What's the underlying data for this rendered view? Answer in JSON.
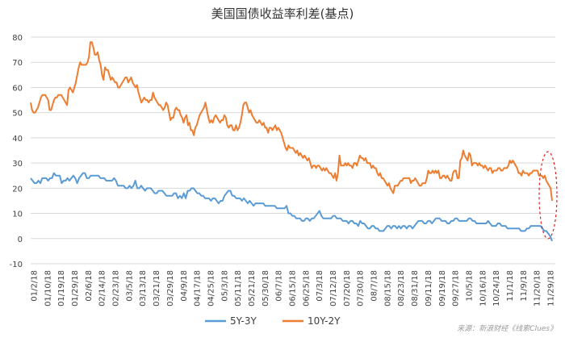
{
  "chart_data": {
    "type": "line",
    "title": "美国国债收益率利差(基点)",
    "ylim": [
      -10,
      80
    ],
    "yticks": [
      -10,
      0,
      10,
      20,
      30,
      40,
      50,
      60,
      70,
      80
    ],
    "grid": true,
    "legend_position": "bottom-center",
    "x_tick_labels": [
      "01/2/18",
      "01/10/18",
      "01/19/18",
      "01/29/18",
      "02/6/18",
      "02/14/18",
      "02/23/18",
      "03/5/18",
      "03/13/18",
      "03/21/18",
      "03/29/18",
      "04/9/18",
      "04/17/18",
      "04/25/18",
      "05/3/18",
      "05/11/18",
      "05/21/18",
      "05/30/18",
      "06/7/18",
      "06/15/18",
      "06/25/18",
      "07/3/18",
      "07/12/18",
      "07/20/18",
      "07/30/18",
      "08/7/18",
      "08/15/18",
      "08/23/18",
      "08/31/18",
      "09/11/18",
      "09/19/18",
      "09/27/18",
      "10/5/18",
      "10/16/18",
      "10/24/18",
      "11/1/18",
      "11/9/18",
      "11/20/18",
      "11/29/18"
    ],
    "series": [
      {
        "name": "5Y-3Y",
        "color": "#5b9bd5",
        "values": [
          24,
          23,
          22,
          22,
          23,
          22,
          24,
          24,
          24,
          23,
          24,
          24,
          26,
          25,
          25,
          25,
          22,
          23,
          23,
          24,
          23,
          24,
          25,
          24,
          22,
          24,
          25,
          26,
          26,
          24,
          24,
          25,
          25,
          25,
          25,
          25,
          24,
          24,
          24,
          23,
          23,
          23,
          23,
          24,
          23,
          21,
          21,
          21,
          21,
          20,
          20,
          21,
          20,
          21,
          23,
          20,
          20,
          21,
          20,
          19,
          20,
          20,
          20,
          19,
          18,
          18,
          19,
          19,
          19,
          18,
          17,
          17,
          17,
          17,
          18,
          18,
          16,
          17,
          16,
          18,
          16,
          19,
          19,
          20,
          20,
          19,
          18,
          18,
          17,
          17,
          16,
          16,
          16,
          15,
          16,
          16,
          15,
          14,
          15,
          15,
          17,
          18,
          19,
          19,
          17,
          17,
          16,
          16,
          16,
          15,
          16,
          15,
          14,
          15,
          14,
          13,
          14,
          14,
          14,
          14,
          14,
          13,
          13,
          13,
          13,
          13,
          13,
          12,
          12,
          12,
          12,
          12,
          13,
          10,
          10,
          9,
          9,
          8,
          8,
          8,
          7,
          7,
          8,
          8,
          7,
          8,
          8,
          9,
          10,
          11,
          9,
          8,
          8,
          8,
          8,
          8,
          9,
          9,
          8,
          8,
          8,
          7,
          7,
          7,
          6,
          7,
          7,
          6,
          6,
          5,
          7,
          6,
          6,
          5,
          4,
          4,
          5,
          5,
          4,
          4,
          3,
          3,
          3,
          4,
          5,
          5,
          4,
          5,
          5,
          4,
          5,
          4,
          5,
          5,
          4,
          5,
          5,
          4,
          5,
          6,
          7,
          7,
          7,
          6,
          6,
          7,
          7,
          6,
          7,
          8,
          8,
          8,
          7,
          7,
          7,
          6,
          6,
          7,
          7,
          8,
          8,
          7,
          7,
          7,
          7,
          7,
          8,
          8,
          7,
          7,
          6,
          6,
          6,
          6,
          6,
          6,
          7,
          6,
          5,
          5,
          5,
          6,
          6,
          5,
          5,
          5,
          4,
          4,
          4,
          4,
          4,
          4,
          4,
          3,
          3,
          3,
          4,
          4,
          5,
          5,
          5,
          5,
          5,
          5,
          4,
          3,
          3,
          2,
          1,
          -1
        ]
      },
      {
        "name": "10Y-2Y",
        "color": "#ed7d31",
        "values": [
          54,
          51,
          50,
          50,
          51,
          52,
          54,
          56,
          57,
          57,
          57,
          56,
          55,
          51,
          51,
          53,
          55,
          56,
          56,
          57,
          57,
          57,
          56,
          55,
          54,
          53,
          59,
          60,
          59,
          58,
          60,
          62,
          65,
          68,
          70,
          69,
          69,
          69,
          69,
          70,
          72,
          78,
          78,
          76,
          73,
          73,
          74,
          71,
          69,
          65,
          63,
          68,
          67,
          67,
          65,
          63,
          64,
          63,
          62,
          62,
          60,
          60,
          61,
          62,
          63,
          64,
          64,
          62,
          63,
          64,
          62,
          61,
          60,
          61,
          58,
          56,
          54,
          55,
          56,
          55,
          55,
          54,
          55,
          55,
          58,
          56,
          55,
          54,
          53,
          53,
          52,
          51,
          52,
          54,
          53,
          50,
          47,
          48,
          48,
          51,
          52,
          51,
          51,
          49,
          48,
          46,
          48,
          49,
          45,
          46,
          43,
          43,
          41,
          44,
          45,
          47,
          49,
          50,
          51,
          52,
          54,
          51,
          48,
          46,
          47,
          46,
          48,
          49,
          48,
          47,
          46,
          47,
          47,
          49,
          48,
          45,
          44,
          45,
          45,
          43,
          43,
          45,
          43,
          44,
          46,
          49,
          53,
          54,
          54,
          52,
          50,
          51,
          49,
          48,
          47,
          46,
          46,
          47,
          46,
          45,
          46,
          44,
          44,
          42,
          44,
          44,
          43,
          44,
          45,
          43,
          44,
          43,
          42,
          40,
          38,
          36,
          35,
          37,
          36,
          36,
          36,
          35,
          34,
          35,
          33,
          34,
          33,
          32,
          33,
          32,
          31,
          32,
          30,
          28,
          29,
          29,
          28,
          29,
          29,
          28,
          27,
          28,
          27,
          28,
          27,
          26,
          26,
          25,
          24,
          26,
          23,
          26,
          33,
          29,
          29,
          29,
          30,
          29,
          30,
          29,
          29,
          28,
          30,
          30,
          29,
          31,
          33,
          32,
          32,
          31,
          32,
          30,
          30,
          30,
          28,
          29,
          28,
          28,
          26,
          25,
          26,
          24,
          24,
          23,
          22,
          21,
          22,
          20,
          19,
          18,
          21,
          21,
          21,
          22,
          23,
          23,
          24,
          24,
          24,
          24,
          24,
          22,
          23,
          23,
          24,
          23,
          22,
          21,
          21,
          22,
          22,
          22,
          24,
          27,
          26,
          26,
          27,
          26,
          27,
          26,
          27,
          24,
          24,
          25,
          25,
          24,
          25,
          24,
          23,
          23,
          26,
          27,
          27,
          24,
          24,
          31,
          32,
          35,
          33,
          32,
          31,
          34,
          33,
          29,
          30,
          30,
          30,
          29,
          30,
          29,
          29,
          28,
          29,
          28,
          27,
          28,
          28,
          26,
          27,
          27,
          27,
          28,
          28,
          27,
          27,
          28,
          28,
          28,
          29,
          31,
          30,
          31,
          30,
          29,
          28,
          26,
          26,
          25,
          27,
          26,
          26,
          26,
          25,
          26,
          26,
          27,
          27,
          27,
          27,
          25,
          25,
          25,
          24,
          25,
          23,
          22,
          21,
          20,
          15
        ]
      }
    ],
    "annotation": "red dashed ellipse highlighting the latest values at the right end of the series"
  },
  "source_note": "来源：新浪财经《线索Clues》"
}
